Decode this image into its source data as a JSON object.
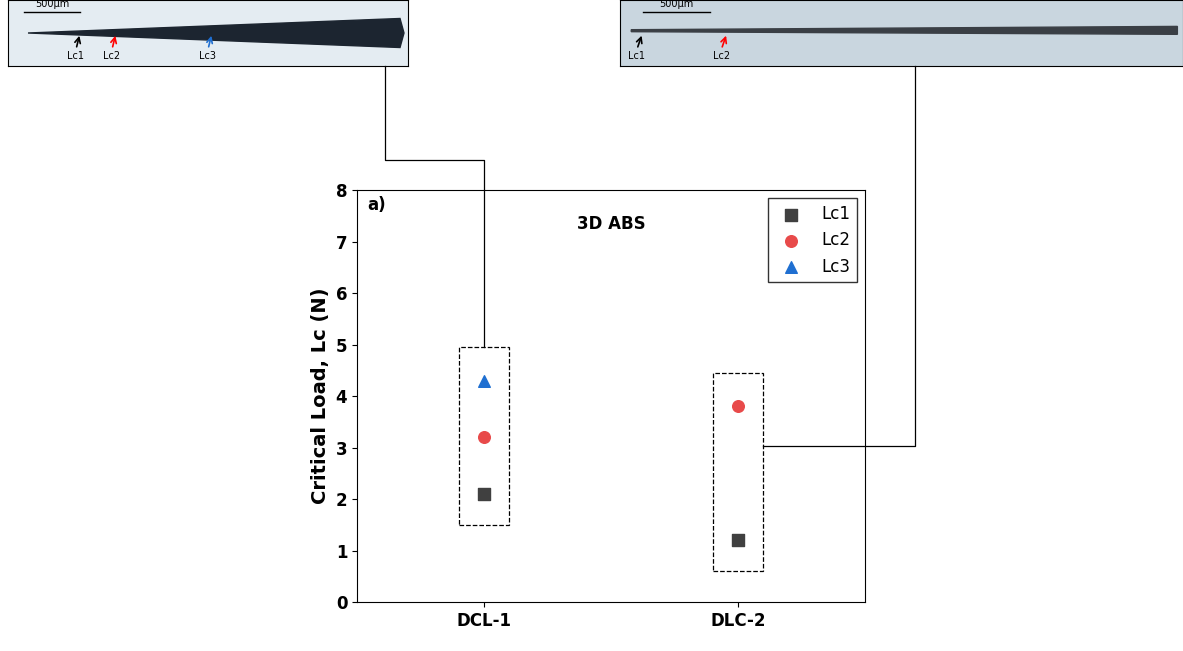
{
  "chart_data": {
    "type": "scatter",
    "title": "3D ABS",
    "subtitle": "a)",
    "y_label": "Critical Load, Lc (N)",
    "categories": [
      "DCL-1",
      "DLC-2"
    ],
    "series": [
      {
        "name": "Lc1",
        "color": "#404040",
        "marker": "square",
        "values": [
          2.1,
          1.2
        ]
      },
      {
        "name": "Lc2",
        "color": "#e84a4a",
        "marker": "circle",
        "values": [
          3.2,
          3.8
        ]
      },
      {
        "name": "Lc3",
        "color": "#1f6fd1",
        "marker": "triangle",
        "values": [
          4.3,
          null
        ]
      }
    ],
    "ylim": [
      0,
      8
    ],
    "yticks": [
      0,
      1,
      2,
      3,
      4,
      5,
      6,
      7,
      8
    ],
    "legend": "upper right",
    "grid": false,
    "annotations": [
      {
        "category": "DCL-1",
        "texts": [
          "500μm",
          "Lc1",
          "Lc2",
          "Lc3"
        ]
      },
      {
        "category": "DLC-2",
        "texts": [
          "500μm",
          "Lc1",
          "Lc2"
        ]
      }
    ]
  }
}
